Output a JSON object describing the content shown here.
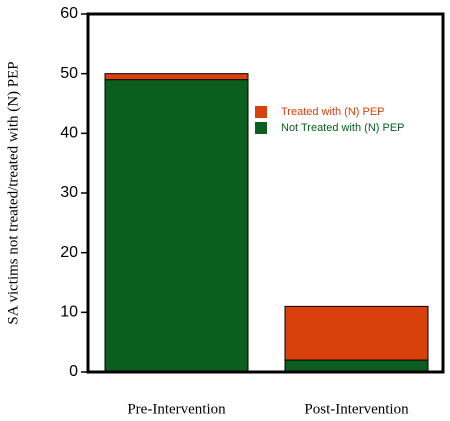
{
  "chart_data": {
    "type": "stacked_bar",
    "y_label": "SA victims not treated/treated with (N) PEP",
    "categories": [
      "Pre-Intervention",
      "Post-Intervention"
    ],
    "series": [
      {
        "name": "Not Treated with (N) PEP",
        "color": "#0a5e1e",
        "values": [
          49,
          2
        ]
      },
      {
        "name": "Treated with (N) PEP",
        "color": "#d8400c",
        "values": [
          1,
          9
        ]
      }
    ],
    "ylim": [
      0,
      60
    ],
    "yticks": [
      0,
      10,
      20,
      30,
      40,
      50,
      60
    ]
  }
}
